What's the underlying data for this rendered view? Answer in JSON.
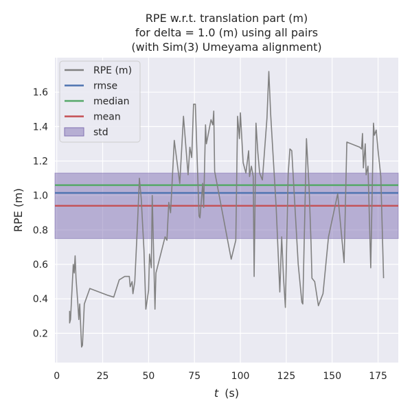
{
  "chart_data": {
    "type": "line",
    "title": [
      "RPE w.r.t. translation part (m)",
      "for delta = 1.0 (m) using all pairs",
      "(with Sim(3) Umeyama alignment)"
    ],
    "xlabel_italic": "t",
    "xlabel_unit": "(s)",
    "ylabel": "RPE (m)",
    "xlim": [
      -1,
      186
    ],
    "ylim": [
      0.03,
      1.8
    ],
    "xticks": [
      0,
      25,
      50,
      75,
      100,
      125,
      150,
      175
    ],
    "yticks": [
      0.2,
      0.4,
      0.6,
      0.8,
      1.0,
      1.2,
      1.4,
      1.6
    ],
    "ytick_labels": [
      "0.2",
      "0.4",
      "0.6",
      "0.8",
      "1.0",
      "1.2",
      "1.4",
      "1.6"
    ],
    "stats": {
      "rmse": 1.015,
      "median": 1.06,
      "mean": 0.94,
      "std_band": [
        0.75,
        1.13
      ]
    },
    "colors": {
      "rpe": "#808080",
      "rmse": "#4c72b0",
      "median": "#55a868",
      "mean": "#c44e52",
      "std": "#8172b3",
      "background": "#eaeaf2",
      "grid": "#ffffff"
    },
    "legend": {
      "position": "top-left",
      "items": [
        {
          "label": "RPE (m)",
          "kind": "line",
          "color_key": "rpe"
        },
        {
          "label": "rmse",
          "kind": "line",
          "color_key": "rmse"
        },
        {
          "label": "median",
          "kind": "line",
          "color_key": "median"
        },
        {
          "label": "mean",
          "kind": "line",
          "color_key": "mean"
        },
        {
          "label": "std",
          "kind": "patch",
          "color_key": "std"
        }
      ]
    },
    "series": [
      {
        "name": "RPE (m)",
        "points": [
          [
            7,
            0.33
          ],
          [
            7,
            0.26
          ],
          [
            7.5,
            0.28
          ],
          [
            9,
            0.6
          ],
          [
            9.5,
            0.55
          ],
          [
            10,
            0.65
          ],
          [
            10.5,
            0.52
          ],
          [
            11.5,
            0.37
          ],
          [
            12,
            0.28
          ],
          [
            12.5,
            0.37
          ],
          [
            13.5,
            0.12
          ],
          [
            14,
            0.13
          ],
          [
            15,
            0.37
          ],
          [
            18,
            0.46
          ],
          [
            28,
            0.42
          ],
          [
            31,
            0.41
          ],
          [
            34,
            0.51
          ],
          [
            37,
            0.53
          ],
          [
            39.5,
            0.53
          ],
          [
            40,
            0.47
          ],
          [
            41,
            0.5
          ],
          [
            41.5,
            0.43
          ],
          [
            42.5,
            0.5
          ],
          [
            44,
            0.84
          ],
          [
            45,
            1.1
          ],
          [
            46,
            0.98
          ],
          [
            47.5,
            0.68
          ],
          [
            48.5,
            0.34
          ],
          [
            50,
            0.45
          ],
          [
            50.5,
            0.66
          ],
          [
            51.5,
            0.58
          ],
          [
            52,
            1.0
          ],
          [
            53.5,
            0.34
          ],
          [
            54,
            0.55
          ],
          [
            59,
            0.76
          ],
          [
            60,
            0.74
          ],
          [
            61,
            0.96
          ],
          [
            62,
            0.9
          ],
          [
            64,
            1.32
          ],
          [
            67,
            1.07
          ],
          [
            69,
            1.46
          ],
          [
            71.5,
            1.12
          ],
          [
            72.5,
            1.28
          ],
          [
            73.5,
            1.22
          ],
          [
            74.5,
            1.53
          ],
          [
            75.5,
            1.53
          ],
          [
            76,
            1.36
          ],
          [
            77.5,
            0.88
          ],
          [
            78,
            0.87
          ],
          [
            79.5,
            1.07
          ],
          [
            80,
            0.93
          ],
          [
            80.5,
            1.16
          ],
          [
            81,
            1.41
          ],
          [
            81.5,
            1.3
          ],
          [
            84,
            1.44
          ],
          [
            85,
            1.41
          ],
          [
            85.5,
            1.49
          ],
          [
            86,
            1.14
          ],
          [
            95,
            0.63
          ],
          [
            97.5,
            0.74
          ],
          [
            98.5,
            1.46
          ],
          [
            99.5,
            1.33
          ],
          [
            100,
            1.48
          ],
          [
            101.5,
            1.19
          ],
          [
            103,
            1.13
          ],
          [
            104.5,
            1.26
          ],
          [
            105,
            1.11
          ],
          [
            106,
            1.17
          ],
          [
            107,
            1.11
          ],
          [
            107.5,
            0.53
          ],
          [
            108.5,
            1.42
          ],
          [
            109.5,
            1.25
          ],
          [
            110.5,
            1.13
          ],
          [
            112,
            1.09
          ],
          [
            114.5,
            1.45
          ],
          [
            115.5,
            1.72
          ],
          [
            116.5,
            1.47
          ],
          [
            119.5,
            0.93
          ],
          [
            121.5,
            0.44
          ],
          [
            122.5,
            0.76
          ],
          [
            123.5,
            0.52
          ],
          [
            124.5,
            0.35
          ],
          [
            126,
            1.12
          ],
          [
            127,
            1.27
          ],
          [
            128,
            1.26
          ],
          [
            131.5,
            0.6
          ],
          [
            133.5,
            0.38
          ],
          [
            134,
            0.37
          ],
          [
            136,
            1.33
          ],
          [
            137.5,
            1.03
          ],
          [
            138.5,
            0.72
          ],
          [
            139,
            0.52
          ],
          [
            140.5,
            0.5
          ],
          [
            142.5,
            0.36
          ],
          [
            145,
            0.43
          ],
          [
            148,
            0.76
          ],
          [
            153,
            1.01
          ],
          [
            156.5,
            0.61
          ],
          [
            158,
            1.31
          ],
          [
            165,
            1.28
          ],
          [
            166,
            1.27
          ],
          [
            166.5,
            1.36
          ],
          [
            167,
            1.16
          ],
          [
            168,
            1.3
          ],
          [
            168.5,
            1.12
          ],
          [
            169.5,
            1.17
          ],
          [
            171,
            0.58
          ],
          [
            172.5,
            1.42
          ],
          [
            173,
            1.35
          ],
          [
            174,
            1.38
          ],
          [
            175,
            1.26
          ],
          [
            176.5,
            1.11
          ],
          [
            178,
            0.52
          ]
        ]
      }
    ]
  }
}
